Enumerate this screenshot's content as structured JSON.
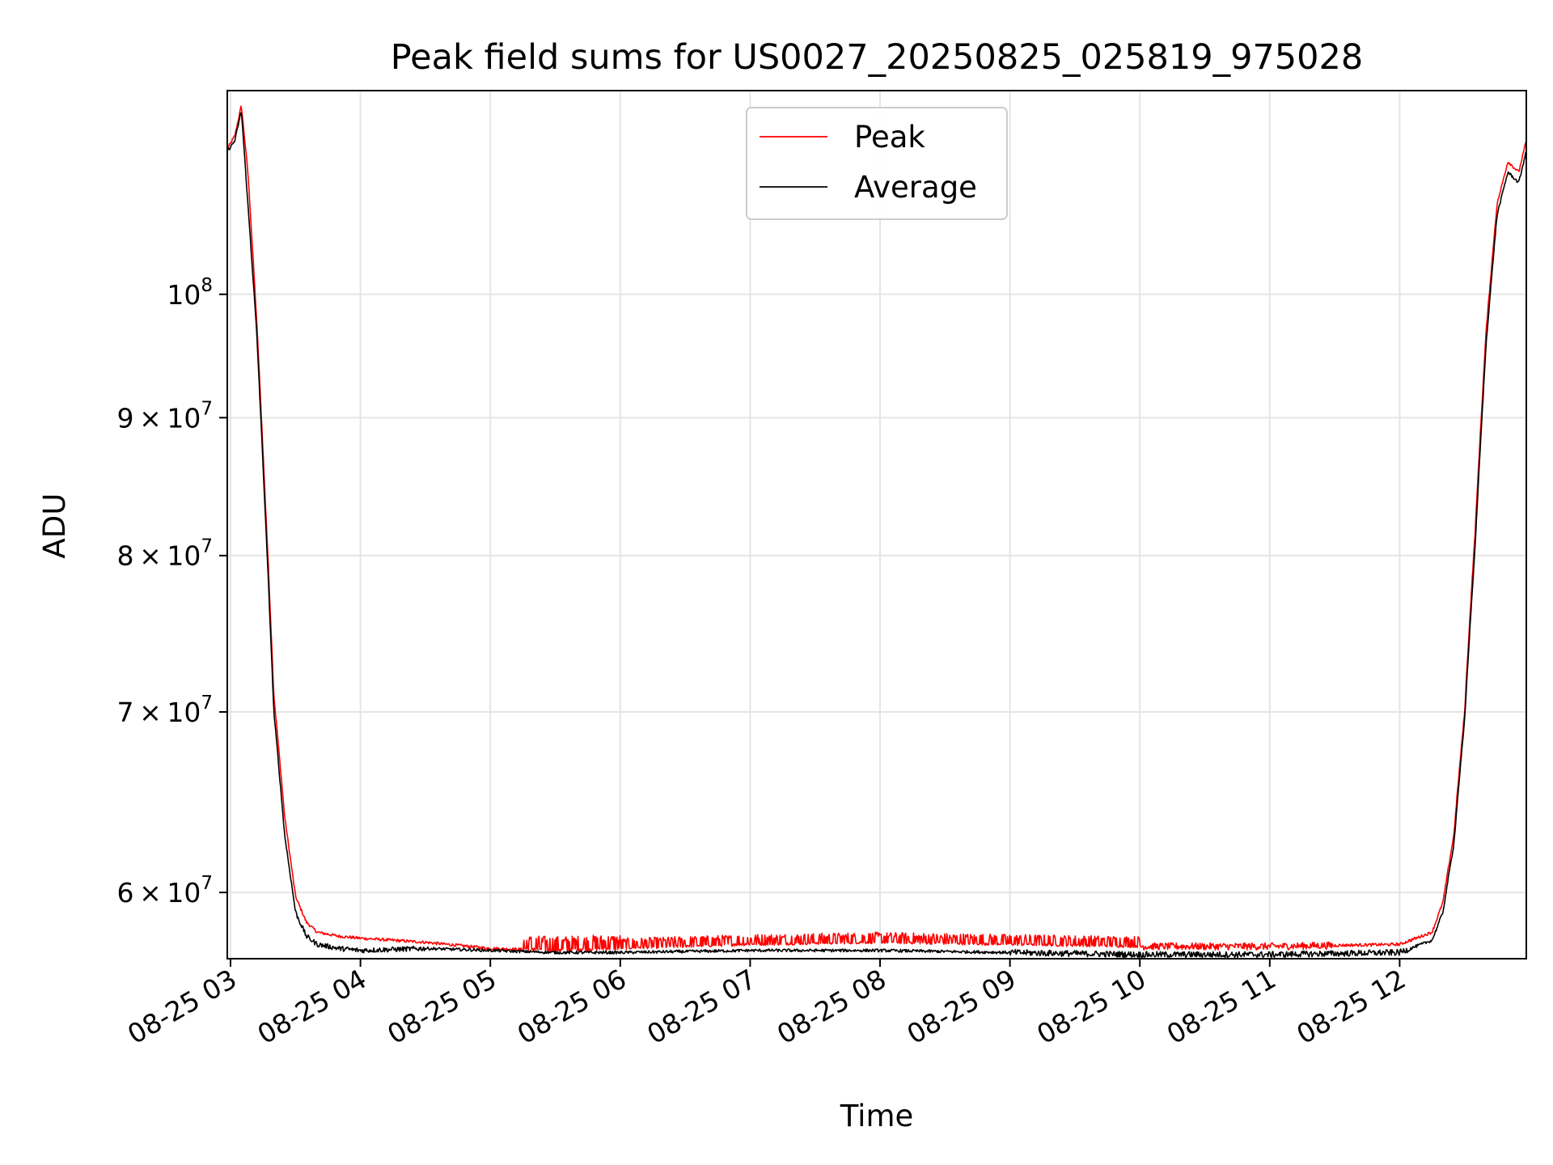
{
  "chart_data": {
    "type": "line",
    "title": "Peak field sums for US0027_20250825_025819_975028",
    "xlabel": "Time",
    "ylabel": "ADU",
    "y_scale": "log",
    "ylim": [
      56700000,
      119000000
    ],
    "xlim": [
      "2025-08-25 02:58:30",
      "2025-08-25 12:58:30"
    ],
    "grid": true,
    "legend_position": "upper center",
    "x_ticks": [
      "08-25 03",
      "08-25 04",
      "08-25 05",
      "08-25 06",
      "08-25 07",
      "08-25 08",
      "08-25 09",
      "08-25 10",
      "08-25 11",
      "08-25 12"
    ],
    "y_ticks": [
      {
        "value": 60000000,
        "mantissa": "6",
        "exponent": "7"
      },
      {
        "value": 70000000,
        "mantissa": "7",
        "exponent": "7"
      },
      {
        "value": 80000000,
        "mantissa": "8",
        "exponent": "7"
      },
      {
        "value": 90000000,
        "mantissa": "9",
        "exponent": "7"
      },
      {
        "value": 100000000,
        "mantissa": "",
        "exponent": "8"
      }
    ],
    "series": [
      {
        "name": "Peak",
        "color": "#ff0000",
        "x": [
          "2025-08-25 02:58:30",
          "2025-08-25 03:02:00",
          "2025-08-25 03:05:00",
          "2025-08-25 03:08:00",
          "2025-08-25 03:12:00",
          "2025-08-25 03:16:00",
          "2025-08-25 03:20:00",
          "2025-08-25 03:25:00",
          "2025-08-25 03:30:00",
          "2025-08-25 03:35:00",
          "2025-08-25 03:40:00",
          "2025-08-25 03:50:00",
          "2025-08-25 04:00:00",
          "2025-08-25 04:30:00",
          "2025-08-25 05:00:00",
          "2025-08-25 05:30:00",
          "2025-08-25 06:00:00",
          "2025-08-25 07:00:00",
          "2025-08-25 08:00:00",
          "2025-08-25 09:00:00",
          "2025-08-25 10:00:00",
          "2025-08-25 11:00:00",
          "2025-08-25 12:00:00",
          "2025-08-25 12:15:00",
          "2025-08-25 12:20:00",
          "2025-08-25 12:25:00",
          "2025-08-25 12:30:00",
          "2025-08-25 12:35:00",
          "2025-08-25 12:40:00",
          "2025-08-25 12:45:00",
          "2025-08-25 12:50:00",
          "2025-08-25 12:55:00",
          "2025-08-25 12:58:30"
        ],
        "values": [
          113200000,
          114500000,
          117500000,
          111000000,
          98000000,
          84000000,
          71000000,
          64000000,
          59800000,
          58500000,
          58000000,
          57800000,
          57700000,
          57500000,
          57200000,
          57100000,
          57200000,
          57400000,
          57500000,
          57400000,
          57300000,
          57300000,
          57400000,
          58000000,
          59500000,
          63000000,
          70000000,
          82000000,
          97000000,
          108000000,
          112000000,
          111000000,
          114000000
        ],
        "noise": [
          {
            "from": "2025-08-25 05:15:00",
            "to": "2025-08-25 06:00:00",
            "amplitude": 700000
          },
          {
            "from": "2025-08-25 06:00:00",
            "to": "2025-08-25 10:00:00",
            "amplitude": 500000
          },
          {
            "from": "2025-08-25 10:00:00",
            "to": "2025-08-25 11:30:00",
            "amplitude": 350000
          }
        ]
      },
      {
        "name": "Average",
        "color": "#000000",
        "x": [
          "2025-08-25 02:58:30",
          "2025-08-25 03:02:00",
          "2025-08-25 03:05:00",
          "2025-08-25 03:08:00",
          "2025-08-25 03:12:00",
          "2025-08-25 03:16:00",
          "2025-08-25 03:20:00",
          "2025-08-25 03:25:00",
          "2025-08-25 03:30:00",
          "2025-08-25 03:35:00",
          "2025-08-25 03:40:00",
          "2025-08-25 03:50:00",
          "2025-08-25 04:00:00",
          "2025-08-25 04:30:00",
          "2025-08-25 05:00:00",
          "2025-08-25 05:30:00",
          "2025-08-25 06:00:00",
          "2025-08-25 07:00:00",
          "2025-08-25 08:00:00",
          "2025-08-25 09:00:00",
          "2025-08-25 10:00:00",
          "2025-08-25 11:00:00",
          "2025-08-25 12:00:00",
          "2025-08-25 12:15:00",
          "2025-08-25 12:20:00",
          "2025-08-25 12:25:00",
          "2025-08-25 12:30:00",
          "2025-08-25 12:35:00",
          "2025-08-25 12:40:00",
          "2025-08-25 12:45:00",
          "2025-08-25 12:50:00",
          "2025-08-25 12:55:00",
          "2025-08-25 12:58:30"
        ],
        "values": [
          113000000,
          114000000,
          117000000,
          108000000,
          97000000,
          83000000,
          70000000,
          63000000,
          59000000,
          57800000,
          57400000,
          57200000,
          57100000,
          57200000,
          57100000,
          57000000,
          57000000,
          57100000,
          57100000,
          57000000,
          56900000,
          56900000,
          57000000,
          57600000,
          59000000,
          62500000,
          69500000,
          81000000,
          96000000,
          107000000,
          111000000,
          110000000,
          113000000
        ],
        "noise": [
          {
            "from": "2025-08-25 03:30:00",
            "to": "2025-08-25 04:30:00",
            "amplitude": 250000
          },
          {
            "from": "2025-08-25 09:00:00",
            "to": "2025-08-25 12:05:00",
            "amplitude": 300000
          }
        ]
      }
    ]
  }
}
